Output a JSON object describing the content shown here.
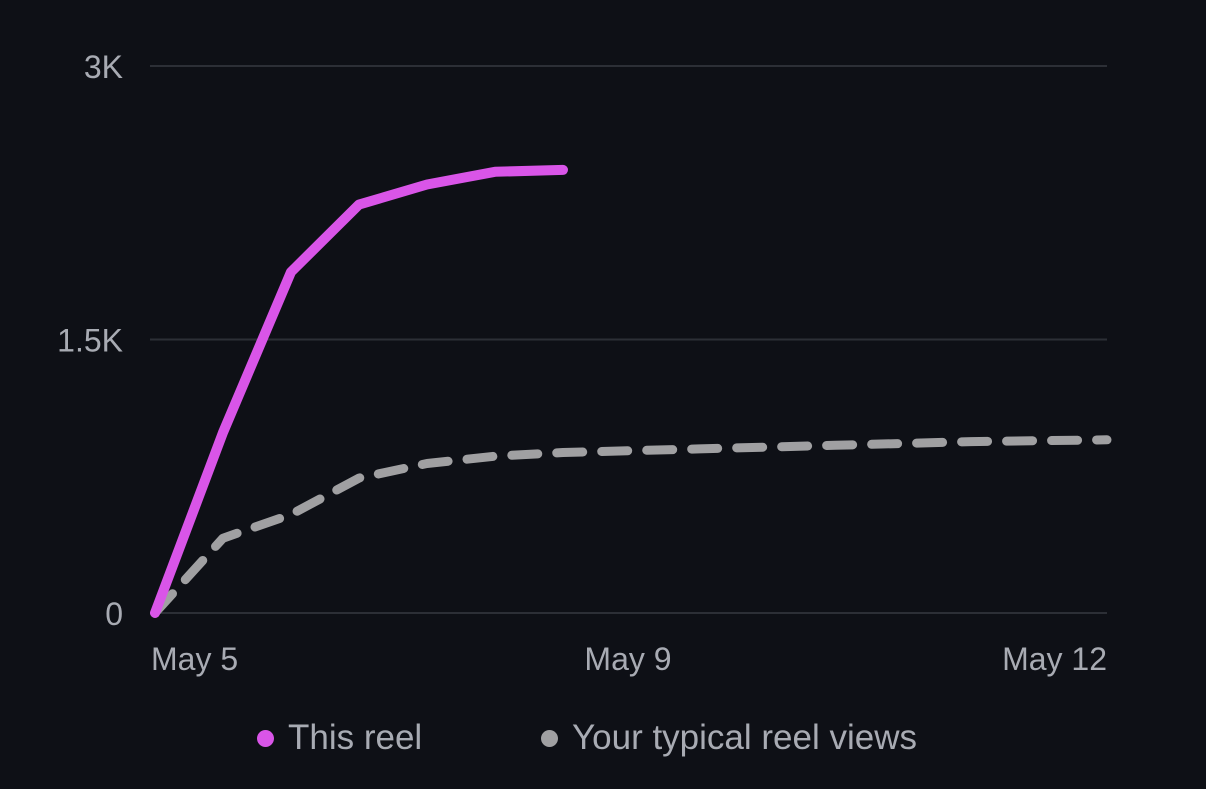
{
  "chart_data": {
    "type": "line",
    "x": [
      "May 5",
      "May 6",
      "May 7",
      "May 8",
      "May 9",
      "May 10",
      "May 11",
      "May 12"
    ],
    "x_tick_labels": [
      "May 5",
      "May 9",
      "May 12"
    ],
    "y_tick_labels": [
      "3K",
      "1.5K",
      "0"
    ],
    "ylim": [
      0,
      3000
    ],
    "grid": true,
    "legend_position": "bottom",
    "series": [
      {
        "name": "This reel",
        "color": "#d955e8",
        "style": "solid",
        "points": [
          {
            "x": "May 5",
            "y": 0
          },
          {
            "x": "May 5",
            "y": 990
          },
          {
            "x": "May 6",
            "y": 1870
          },
          {
            "x": "May 6",
            "y": 2240
          },
          {
            "x": "May 7",
            "y": 2350
          },
          {
            "x": "May 7",
            "y": 2420
          },
          {
            "x": "May 8",
            "y": 2430
          }
        ]
      },
      {
        "name": "Your typical reel views",
        "color": "#a0a0a2",
        "style": "dashed",
        "points": [
          {
            "x": "May 5",
            "y": 0
          },
          {
            "x": "May 5",
            "y": 410
          },
          {
            "x": "May 6",
            "y": 540
          },
          {
            "x": "May 6",
            "y": 740
          },
          {
            "x": "May 7",
            "y": 820
          },
          {
            "x": "May 7",
            "y": 860
          },
          {
            "x": "May 8",
            "y": 880
          },
          {
            "x": "May 9",
            "y": 900
          },
          {
            "x": "May 10",
            "y": 920
          },
          {
            "x": "May 11",
            "y": 940
          },
          {
            "x": "May 12",
            "y": 950
          }
        ]
      }
    ]
  },
  "legend": {
    "items": [
      {
        "label": "This reel",
        "color": "#d955e8"
      },
      {
        "label": "Your typical reel views",
        "color": "#a0a0a2"
      }
    ]
  },
  "colors": {
    "background": "#0e1016",
    "gridline": "#2c2f36",
    "text": "#a8abb3"
  }
}
